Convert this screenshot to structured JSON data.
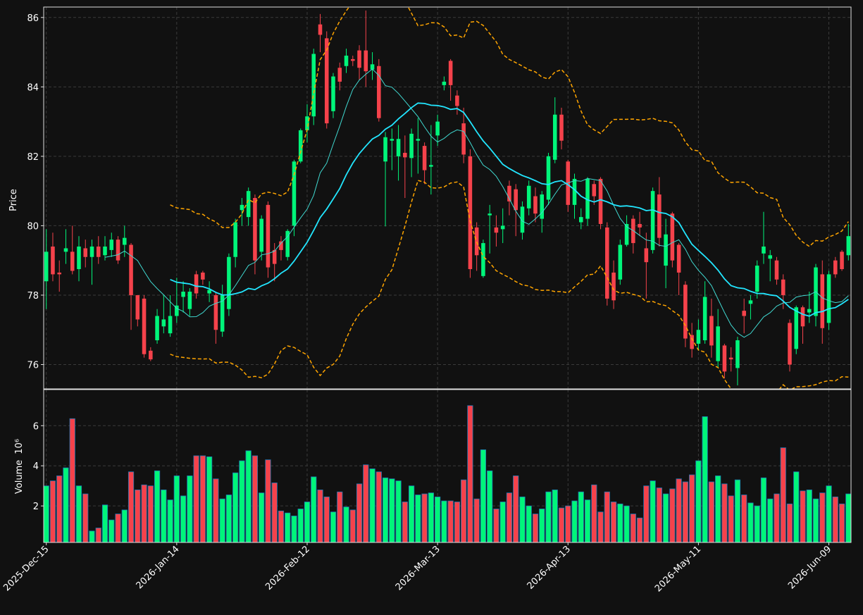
{
  "chart_data": {
    "type": "candlestick",
    "categories": [
      "2025-Dec-15",
      null,
      null,
      null,
      null,
      null,
      null,
      null,
      null,
      null,
      null,
      null,
      null,
      null,
      null,
      null,
      null,
      null,
      null,
      null,
      "2026-Jan-14",
      null,
      null,
      null,
      null,
      null,
      null,
      null,
      null,
      null,
      null,
      null,
      null,
      null,
      null,
      null,
      null,
      null,
      null,
      null,
      "2026-Feb-12",
      null,
      null,
      null,
      null,
      null,
      null,
      null,
      null,
      null,
      null,
      null,
      null,
      null,
      null,
      null,
      null,
      null,
      null,
      null,
      "2026-Mar-13",
      null,
      null,
      null,
      null,
      null,
      null,
      null,
      null,
      null,
      null,
      null,
      null,
      null,
      null,
      null,
      null,
      null,
      null,
      null,
      "2026-Apr-13",
      null,
      null,
      null,
      null,
      null,
      null,
      null,
      null,
      null,
      null,
      null,
      null,
      null,
      null,
      null,
      null,
      null,
      null,
      null,
      "2026-May-11",
      null,
      null,
      null,
      null,
      null,
      null,
      null,
      null,
      null,
      null,
      null,
      null,
      null,
      null,
      null,
      null,
      null,
      null,
      null,
      "2026-Jun-09",
      null,
      null,
      null
    ],
    "open": [
      78.4,
      79.4,
      78.65,
      79.25,
      79.25,
      78.75,
      79.35,
      79.1,
      79.4,
      79.15,
      79.3,
      79.6,
      79.45,
      79.45,
      78.0,
      77.9,
      76.4,
      76.7,
      77.1,
      76.9,
      77.4,
      77.95,
      77.6,
      78.6,
      78.65,
      78.05,
      78.0,
      76.95,
      77.6,
      79.1,
      80.45,
      80.25,
      80.8,
      79.25,
      80.6,
      79.3,
      79.55,
      79.1,
      80.0,
      81.85,
      82.75,
      83.15,
      85.8,
      85.4,
      83.3,
      84.55,
      84.6,
      84.8,
      85.05,
      85.05,
      84.5,
      84.6,
      81.85,
      82.45,
      82.0,
      82.1,
      81.95,
      82.45,
      82.3,
      81.7,
      82.6,
      84.05,
      84.75,
      83.75,
      82.95,
      82.0,
      79.95,
      78.55,
      80.3,
      79.95,
      79.9,
      81.15,
      81.05,
      79.8,
      80.5,
      80.85,
      80.2,
      80.75,
      81.9,
      83.2,
      81.85,
      80.6,
      80.1,
      80.2,
      81.2,
      81.35,
      79.95,
      78.65,
      78.45,
      79.45,
      80.2,
      80.05,
      79.35,
      79.3,
      80.9,
      78.85,
      80.35,
      79.45,
      78.3,
      76.85,
      76.6,
      76.7,
      77.4,
      76.1,
      76.55,
      76.2,
      75.9,
      77.55,
      77.75,
      78.1,
      79.2,
      79.05,
      79.0,
      78.45,
      77.2,
      76.45,
      77.65,
      77.5,
      77.4,
      78.6,
      77.2,
      79.0,
      79.25,
      79.15
    ],
    "high": [
      79.9,
      79.8,
      79.0,
      79.9,
      80.0,
      79.7,
      79.6,
      79.6,
      79.7,
      79.7,
      79.8,
      79.7,
      80.0,
      79.5,
      78.0,
      78.0,
      76.5,
      77.6,
      78.0,
      78.0,
      78.5,
      78.4,
      78.2,
      78.7,
      78.7,
      78.4,
      78.1,
      78.3,
      79.2,
      80.2,
      80.8,
      81.1,
      80.9,
      80.3,
      80.7,
      79.5,
      79.7,
      79.9,
      81.9,
      82.8,
      83.5,
      85.1,
      86.1,
      85.6,
      84.4,
      84.7,
      85.1,
      84.9,
      85.2,
      86.2,
      85.0,
      84.8,
      82.7,
      82.8,
      82.9,
      82.6,
      82.8,
      83.1,
      82.4,
      82.9,
      83.2,
      84.3,
      84.8,
      83.9,
      83.4,
      82.2,
      80.1,
      79.6,
      80.6,
      80.3,
      80.5,
      81.3,
      81.2,
      80.7,
      81.3,
      81.1,
      81.0,
      82.1,
      83.7,
      83.4,
      81.9,
      81.5,
      80.5,
      81.4,
      81.3,
      81.4,
      80.1,
      79.0,
      79.6,
      80.3,
      80.3,
      80.4,
      79.8,
      81.1,
      81.4,
      80.2,
      80.4,
      79.5,
      78.4,
      77.2,
      77.3,
      78.4,
      77.9,
      77.6,
      76.6,
      76.5,
      76.8,
      77.9,
      78.0,
      79.0,
      80.4,
      79.3,
      79.1,
      78.6,
      77.3,
      77.7,
      77.7,
      78.1,
      78.9,
      79.0,
      78.7,
      79.1,
      79.3,
      80.05
    ],
    "low": [
      77.6,
      78.4,
      78.1,
      78.9,
      78.6,
      78.4,
      78.8,
      78.3,
      78.9,
      79.0,
      79.1,
      78.9,
      79.1,
      77.0,
      77.1,
      76.2,
      76.1,
      76.6,
      76.9,
      76.8,
      77.2,
      77.5,
      77.4,
      77.9,
      78.3,
      77.8,
      76.6,
      76.8,
      77.4,
      78.8,
      80.0,
      80.0,
      78.6,
      79.0,
      78.5,
      78.4,
      79.0,
      79.0,
      79.7,
      81.8,
      82.4,
      82.9,
      85.0,
      82.8,
      83.1,
      83.9,
      84.4,
      84.6,
      84.2,
      84.0,
      84.2,
      83.0,
      79.98,
      81.6,
      81.3,
      80.8,
      81.4,
      81.5,
      81.2,
      80.9,
      82.3,
      83.9,
      83.6,
      83.2,
      81.8,
      78.5,
      78.7,
      78.5,
      79.2,
      79.4,
      79.5,
      80.3,
      79.7,
      79.6,
      80.3,
      80.1,
      79.8,
      80.6,
      81.8,
      82.2,
      80.4,
      80.2,
      79.9,
      80.0,
      80.6,
      79.9,
      77.7,
      77.6,
      78.3,
      79.4,
      79.2,
      79.7,
      77.9,
      79.2,
      79.4,
      78.2,
      78.8,
      78.0,
      76.5,
      76.2,
      76.4,
      76.6,
      76.2,
      75.9,
      75.6,
      75.8,
      75.4,
      76.9,
      77.3,
      77.9,
      78.9,
      78.4,
      78.3,
      77.6,
      75.8,
      76.3,
      76.6,
      77.2,
      77.1,
      76.6,
      77.0,
      78.5,
      78.7,
      79.0
    ],
    "close": [
      79.25,
      78.6,
      78.6,
      79.35,
      78.7,
      79.4,
      79.1,
      79.4,
      79.1,
      79.4,
      79.6,
      79.0,
      79.65,
      78.0,
      77.3,
      76.3,
      76.15,
      77.4,
      77.3,
      77.4,
      77.7,
      78.1,
      78.1,
      78.05,
      78.45,
      78.15,
      77.0,
      78.0,
      79.1,
      80.1,
      80.6,
      81.0,
      79.0,
      80.2,
      78.8,
      78.9,
      79.3,
      79.85,
      81.85,
      82.75,
      83.15,
      84.95,
      85.5,
      82.95,
      84.3,
      84.15,
      84.9,
      84.75,
      84.55,
      84.45,
      84.65,
      83.1,
      82.55,
      82.5,
      82.5,
      81.97,
      82.65,
      82.5,
      81.6,
      81.75,
      83.0,
      84.15,
      84.05,
      83.45,
      82.05,
      78.75,
      79.15,
      79.5,
      80.35,
      79.8,
      80.0,
      80.7,
      80.45,
      80.55,
      81.15,
      80.35,
      80.9,
      82.0,
      83.2,
      82.45,
      80.6,
      81.35,
      80.25,
      81.35,
      80.85,
      80.05,
      77.9,
      77.85,
      79.45,
      80.05,
      79.5,
      79.95,
      78.95,
      81.0,
      79.65,
      79.75,
      79.0,
      78.65,
      76.75,
      76.45,
      77.0,
      77.95,
      76.55,
      77.1,
      75.8,
      76.15,
      76.7,
      77.4,
      77.85,
      78.85,
      79.4,
      79.15,
      78.45,
      78.0,
      76.0,
      77.65,
      77.1,
      77.6,
      78.8,
      77.05,
      78.6,
      78.6,
      78.75,
      79.7
    ],
    "up_color": "#00f57a",
    "down_color": "#f5424b",
    "ylabel": "Price",
    "ylim": [
      75.3,
      86.3
    ],
    "yticks": [
      76,
      78,
      80,
      82,
      84,
      86
    ],
    "grid": true,
    "moving_averages": [
      {
        "period": 10,
        "color": "#40d8d0"
      },
      {
        "period": 20,
        "color": "#22e6ff"
      }
    ],
    "bollinger": {
      "period": 20,
      "std": 2,
      "color": "#ffa500"
    },
    "volume": {
      "values": [
        3.0,
        3.25,
        3.5,
        3.9,
        6.35,
        3.0,
        2.6,
        0.75,
        0.9,
        2.05,
        1.3,
        1.6,
        1.8,
        3.7,
        2.8,
        3.05,
        3.0,
        3.75,
        2.8,
        2.3,
        3.5,
        2.5,
        3.5,
        4.5,
        4.5,
        4.45,
        3.35,
        2.35,
        2.55,
        3.65,
        4.25,
        4.75,
        4.5,
        2.65,
        4.3,
        3.15,
        1.75,
        1.65,
        1.5,
        1.85,
        2.2,
        3.45,
        2.8,
        2.45,
        1.7,
        2.7,
        1.95,
        1.8,
        3.1,
        4.05,
        3.85,
        3.7,
        3.4,
        3.35,
        3.25,
        2.2,
        3.0,
        2.55,
        2.6,
        2.65,
        2.45,
        2.25,
        2.25,
        2.2,
        3.3,
        7.0,
        2.35,
        4.8,
        3.75,
        1.85,
        2.2,
        2.65,
        3.5,
        2.45,
        2.0,
        1.6,
        1.85,
        2.7,
        2.8,
        1.9,
        2.0,
        2.25,
        2.7,
        2.3,
        3.05,
        1.7,
        2.7,
        2.2,
        2.1,
        2.0,
        1.6,
        1.4,
        3.0,
        3.25,
        2.9,
        2.6,
        2.85,
        3.35,
        3.2,
        3.55,
        4.25,
        6.45,
        3.2,
        3.5,
        3.1,
        2.5,
        3.3,
        2.55,
        2.15,
        2.0,
        3.4,
        2.35,
        2.6,
        4.9,
        2.1,
        3.7,
        2.75,
        2.8,
        2.35,
        2.65,
        3.0,
        2.45,
        2.1,
        2.6
      ],
      "ylabel": "Volume",
      "exponent_label": "10⁶",
      "edge_color": "#1f77b4",
      "ylim": [
        0.18,
        7.8
      ],
      "yticks": [
        2,
        4,
        6
      ]
    }
  }
}
